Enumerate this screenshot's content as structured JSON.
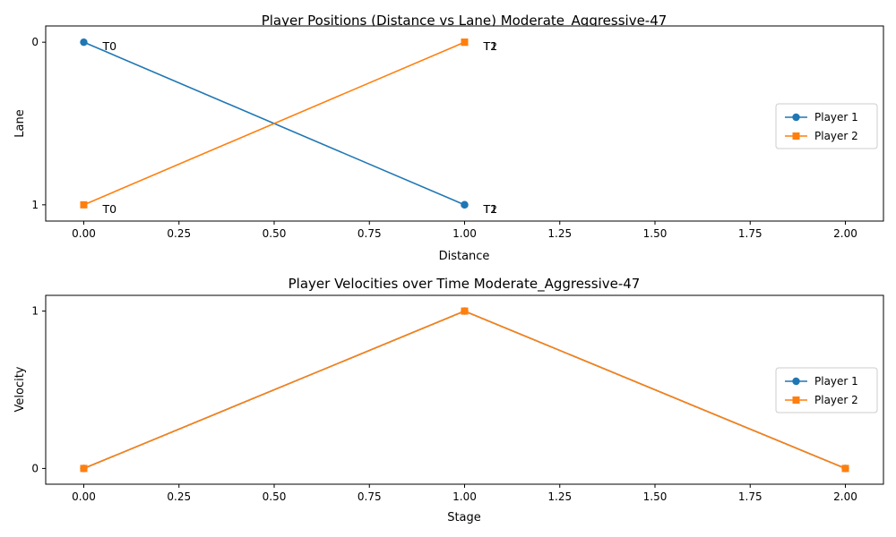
{
  "chart_data": [
    {
      "type": "line",
      "title": "Player Positions (Distance vs Lane) Moderate_Aggressive-47",
      "xlabel": "Distance",
      "ylabel": "Lane",
      "xlim": [
        -0.1,
        2.1
      ],
      "ylim": [
        1.1,
        -0.1
      ],
      "y_inverted": true,
      "xticks": [
        0.0,
        0.25,
        0.5,
        0.75,
        1.0,
        1.25,
        1.5,
        1.75,
        2.0
      ],
      "xtick_labels": [
        "0.00",
        "0.25",
        "0.50",
        "0.75",
        "1.00",
        "1.25",
        "1.50",
        "1.75",
        "2.00"
      ],
      "yticks": [
        0,
        1
      ],
      "ytick_labels": [
        "0",
        "1"
      ],
      "legend_position": "center-right",
      "series": [
        {
          "name": "Player 1",
          "color": "#1f77b4",
          "marker": "circle",
          "x": [
            0,
            1,
            1
          ],
          "y": [
            0,
            1,
            1
          ],
          "point_labels": [
            "T0",
            "T1",
            "T2"
          ]
        },
        {
          "name": "Player 2",
          "color": "#ff7f0e",
          "marker": "square",
          "x": [
            0,
            1,
            1
          ],
          "y": [
            1,
            0,
            0
          ],
          "point_labels": [
            "T0",
            "T1",
            "T2"
          ]
        }
      ]
    },
    {
      "type": "line",
      "title": "Player Velocities over Time Moderate_Aggressive-47",
      "xlabel": "Stage",
      "ylabel": "Velocity",
      "xlim": [
        -0.1,
        2.1
      ],
      "ylim": [
        -0.1,
        1.1
      ],
      "xticks": [
        0.0,
        0.25,
        0.5,
        0.75,
        1.0,
        1.25,
        1.5,
        1.75,
        2.0
      ],
      "xtick_labels": [
        "0.00",
        "0.25",
        "0.50",
        "0.75",
        "1.00",
        "1.25",
        "1.50",
        "1.75",
        "2.00"
      ],
      "yticks": [
        0,
        1
      ],
      "ytick_labels": [
        "0",
        "1"
      ],
      "legend_position": "center-right",
      "series": [
        {
          "name": "Player 1",
          "color": "#1f77b4",
          "marker": "circle",
          "x": [
            0,
            1,
            2
          ],
          "y": [
            0,
            1,
            0
          ]
        },
        {
          "name": "Player 2",
          "color": "#ff7f0e",
          "marker": "square",
          "x": [
            0,
            1,
            2
          ],
          "y": [
            0,
            1,
            0
          ]
        }
      ]
    }
  ]
}
